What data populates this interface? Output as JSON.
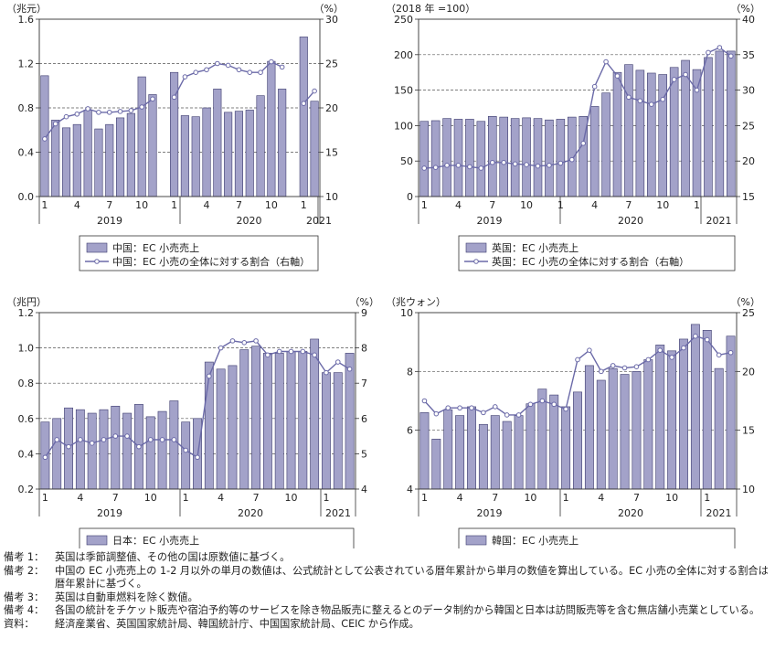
{
  "chart_data": [
    {
      "type": "bar+line",
      "country": "中国",
      "y_unit_left": "（兆元）",
      "y_unit_right": "（%）",
      "ylim_left": [
        0,
        1.6
      ],
      "yticks_left": [
        "0.0",
        "0.4",
        "0.8",
        "1.2",
        "1.6"
      ],
      "ylim_right": [
        10,
        30
      ],
      "yticks_right": [
        "10",
        "15",
        "20",
        "25",
        "30"
      ],
      "month_ticks": [
        "1",
        "4",
        "7",
        "10",
        "1",
        "4",
        "7",
        "10",
        "1"
      ],
      "years": [
        "2019",
        "2020",
        "2021"
      ],
      "bar_values": [
        1.09,
        0.69,
        0.62,
        0.65,
        0.78,
        0.61,
        0.65,
        0.71,
        0.75,
        1.08,
        0.92,
        null,
        1.12,
        0.73,
        0.72,
        0.8,
        0.97,
        0.76,
        0.77,
        0.78,
        0.91,
        1.22,
        0.97,
        null,
        1.44,
        0.86
      ],
      "line_values": [
        16.5,
        18.2,
        19.0,
        19.3,
        19.9,
        19.5,
        19.5,
        19.6,
        19.7,
        20.1,
        21.0,
        null,
        21.2,
        23.5,
        24.0,
        24.3,
        25.0,
        24.8,
        24.3,
        24.0,
        24.0,
        25.2,
        24.6,
        null,
        20.5,
        21.9
      ],
      "legend": [
        "中国：EC 小売売上",
        "中国：EC 小売の全体に対する割合（右軸）"
      ]
    },
    {
      "type": "bar+line",
      "country": "英国",
      "y_unit_left": "（2018 年 =100）",
      "y_unit_right": "（%）",
      "ylim_left": [
        0,
        250
      ],
      "yticks_left": [
        "0",
        "50",
        "100",
        "150",
        "200",
        "250"
      ],
      "ylim_right": [
        15,
        40
      ],
      "yticks_right": [
        "15",
        "20",
        "25",
        "30",
        "35",
        "40"
      ],
      "month_ticks": [
        "1",
        "4",
        "7",
        "10",
        "1",
        "4",
        "7",
        "10",
        "1"
      ],
      "years": [
        "2019",
        "2020",
        "2021"
      ],
      "bar_values": [
        106,
        107,
        110,
        109,
        109,
        106,
        113,
        112,
        110,
        111,
        110,
        108,
        109,
        112,
        113,
        127,
        146,
        175,
        186,
        178,
        174,
        172,
        182,
        192,
        179,
        196,
        205,
        205
      ],
      "line_values": [
        19.0,
        19.1,
        19.4,
        19.4,
        19.2,
        19.0,
        19.8,
        19.8,
        19.6,
        19.5,
        19.3,
        19.4,
        19.7,
        20.2,
        22.5,
        30.5,
        34.0,
        32.0,
        29.0,
        28.5,
        28.0,
        28.7,
        31.5,
        32.2,
        30.0,
        35.3,
        36.0,
        34.8
      ],
      "legend": [
        "英国：EC 小売売上",
        "英国：EC 小売の全体に対する割合（右軸）"
      ]
    },
    {
      "type": "bar+line",
      "country": "日本",
      "y_unit_left": "（兆円）",
      "y_unit_right": "（%）",
      "ylim_left": [
        0.2,
        1.2
      ],
      "yticks_left": [
        "0.2",
        "0.4",
        "0.6",
        "0.8",
        "1.0",
        "1.2"
      ],
      "ylim_right": [
        4,
        9
      ],
      "yticks_right": [
        "4",
        "5",
        "6",
        "7",
        "8",
        "9"
      ],
      "month_ticks": [
        "1",
        "4",
        "7",
        "10",
        "1",
        "4",
        "7",
        "10",
        "1"
      ],
      "years": [
        "2019",
        "2020",
        "2021"
      ],
      "bar_values": [
        0.58,
        0.6,
        0.66,
        0.65,
        0.63,
        0.65,
        0.67,
        0.63,
        0.68,
        0.61,
        0.64,
        0.7,
        0.58,
        0.6,
        0.92,
        0.88,
        0.9,
        0.99,
        1.01,
        0.97,
        0.97,
        0.98,
        0.98,
        1.05,
        0.86,
        0.86,
        0.97
      ],
      "line_values": [
        4.9,
        5.4,
        5.2,
        5.4,
        5.3,
        5.4,
        5.5,
        5.5,
        5.2,
        5.4,
        5.4,
        5.4,
        5.1,
        4.9,
        7.2,
        8.0,
        8.2,
        8.15,
        8.2,
        7.8,
        7.9,
        7.9,
        7.9,
        7.8,
        7.3,
        7.6,
        7.4
      ],
      "legend": [
        "日本：EC 小売売上",
        "日本：EC 小売の全体に対する割合（右軸）"
      ]
    },
    {
      "type": "bar+line",
      "country": "韓国",
      "y_unit_left": "（兆ウォン）",
      "y_unit_right": "（%）",
      "ylim_left": [
        4,
        10
      ],
      "yticks_left": [
        "4",
        "6",
        "8",
        "10"
      ],
      "ylim_right": [
        10,
        25
      ],
      "yticks_right": [
        "10",
        "15",
        "20",
        "25"
      ],
      "month_ticks": [
        "1",
        "4",
        "7",
        "10",
        "1",
        "4",
        "7",
        "10",
        "1"
      ],
      "years": [
        "2019",
        "2020",
        "2021"
      ],
      "bar_values": [
        6.6,
        5.7,
        6.7,
        6.5,
        6.8,
        6.2,
        6.5,
        6.3,
        6.5,
        6.9,
        7.4,
        7.2,
        6.8,
        7.3,
        8.2,
        7.7,
        8.1,
        7.9,
        8.0,
        8.4,
        8.9,
        8.7,
        9.1,
        9.6,
        9.4,
        8.1,
        9.2
      ],
      "line_values": [
        17.5,
        16.4,
        16.9,
        16.9,
        16.9,
        16.5,
        17.0,
        16.3,
        16.3,
        17.2,
        17.5,
        17.2,
        16.8,
        21.0,
        21.8,
        20.0,
        20.5,
        20.3,
        20.4,
        21.0,
        21.8,
        21.2,
        22.0,
        23.0,
        22.7,
        21.4,
        21.6
      ],
      "legend": [
        "韓国：EC 小売売上",
        "韓国：EC 小売の全体に対する割合（右軸）"
      ]
    }
  ],
  "colors": {
    "bar_fill": "#a3a2c9",
    "bar_stroke": "#3c3b6e",
    "line": "#6b6aa8",
    "marker_fill": "#ffffff",
    "axis": "#333333",
    "grid": "#555555"
  },
  "notes": [
    {
      "label": "備考 1：",
      "text": "英国は季節調整値、その他の国は原数値に基づく。"
    },
    {
      "label": "備考 2：",
      "text": "中国の EC 小売売上の 1-2 月以外の単月の数値は、公式統計として公表されている暦年累計から単月の数値を算出している。EC 小売の全体に対する割合は暦年累計に基づく。"
    },
    {
      "label": "備考 3：",
      "text": "英国は自動車燃料を除く数値。"
    },
    {
      "label": "備考 4：",
      "text": "各国の統計をチケット販売や宿泊予約等のサービスを除き物品販売に整えるとのデータ制約から韓国と日本は訪問販売等を含む無店舗小売業としている。"
    },
    {
      "label": "資料：",
      "text": "経済産業省、英国国家統計局、韓国統計庁、中国国家統計局、CEIC から作成。"
    }
  ]
}
